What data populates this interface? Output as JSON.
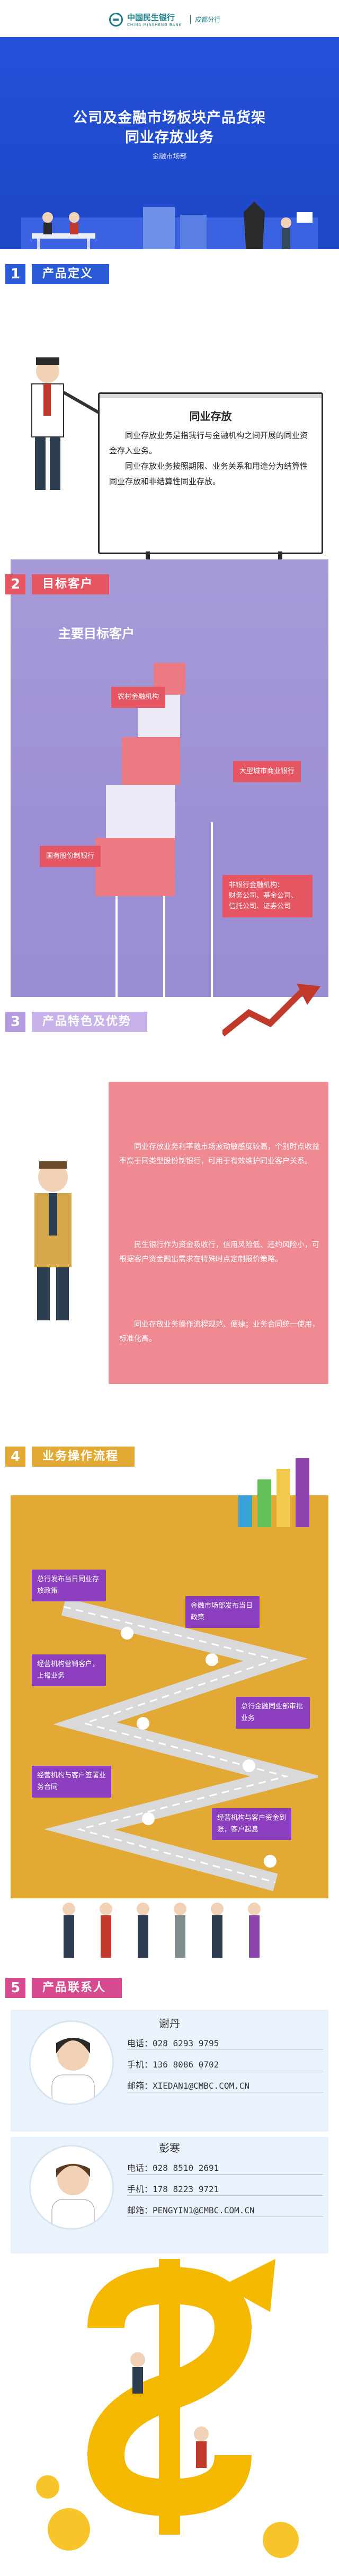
{
  "header": {
    "bank_name": "中国民生银行",
    "bank_name_en": "CHINA MINSHENG BANK",
    "branch": "成都分行"
  },
  "hero": {
    "title_line1": "公司及金融市场板块产品货架",
    "title_line2": "同业存放业务",
    "department": "金融市场部"
  },
  "section1": {
    "number": "1",
    "label": "产品定义",
    "board_title": "同业存放",
    "paragraphs": [
      "同业存放业务是指我行与金融机构之间开展的同业资金存入业务。",
      "同业存放业务按照期限、业务关系和用途分为结算性同业存放和非结算性同业存放。"
    ]
  },
  "section2": {
    "number": "2",
    "label": "目标客户",
    "subtitle": "主要目标客户",
    "customers": [
      "农村金融机构",
      "大型城市商业银行",
      "国有股份制银行",
      "非银行金融机构：",
      "财务公司、基金公司、",
      "信托公司、证券公司"
    ]
  },
  "section3": {
    "number": "3",
    "label": "产品特色及优势",
    "features": [
      "同业存放业务利率随市场波动敏感度较高，个别时点收益率高于同类型股份制银行，可用于有效维护同业客户关系。",
      "民生银行作为资金吸收行，信用风险低、违约风险小，可根据客户资金融出需求在特殊时点定制报价策略。",
      "同业存放业务操作流程规范、便捷；业务合同统一使用，标准化高。"
    ]
  },
  "section4": {
    "number": "4",
    "label": "业务操作流程",
    "steps": [
      {
        "text": "总行发布当日同业存放政策",
        "num": "1"
      },
      {
        "text": "金融市场部发布当日政策",
        "num": "2"
      },
      {
        "text": "经营机构营销客户，上报业务",
        "num": "3"
      },
      {
        "text": "总行金融同业部审批业务",
        "num": "4"
      },
      {
        "text": "经营机构与客户签署业务合同",
        "num": "5"
      },
      {
        "text": "经营机构与客户资金到账，客户起息",
        "num": "6"
      }
    ]
  },
  "section5": {
    "number": "5",
    "label": "产品联系人",
    "contacts": [
      {
        "name": "谢丹",
        "phone_label": "电话：",
        "phone": "028 6293 9795",
        "mobile_label": "手机：",
        "mobile": "136 8086 0702",
        "email_label": "邮箱：",
        "email": "XIEDAN1@CMBC.COM.CN"
      },
      {
        "name": "彭寒",
        "phone_label": "电话：",
        "phone": "028 8510 2691",
        "mobile_label": "手机：",
        "mobile": "178 8223 9721",
        "email_label": "邮箱：",
        "email": "PENGYIN1@CMBC.COM.CN"
      }
    ]
  },
  "colors": {
    "hero_blue": "#1f4bd0",
    "section_blue": "#2b5ad6",
    "purple": "#9a8cd1",
    "pink": "#ef8a93",
    "gold": "#e2a934",
    "step_purple": "#8b3fbf"
  }
}
